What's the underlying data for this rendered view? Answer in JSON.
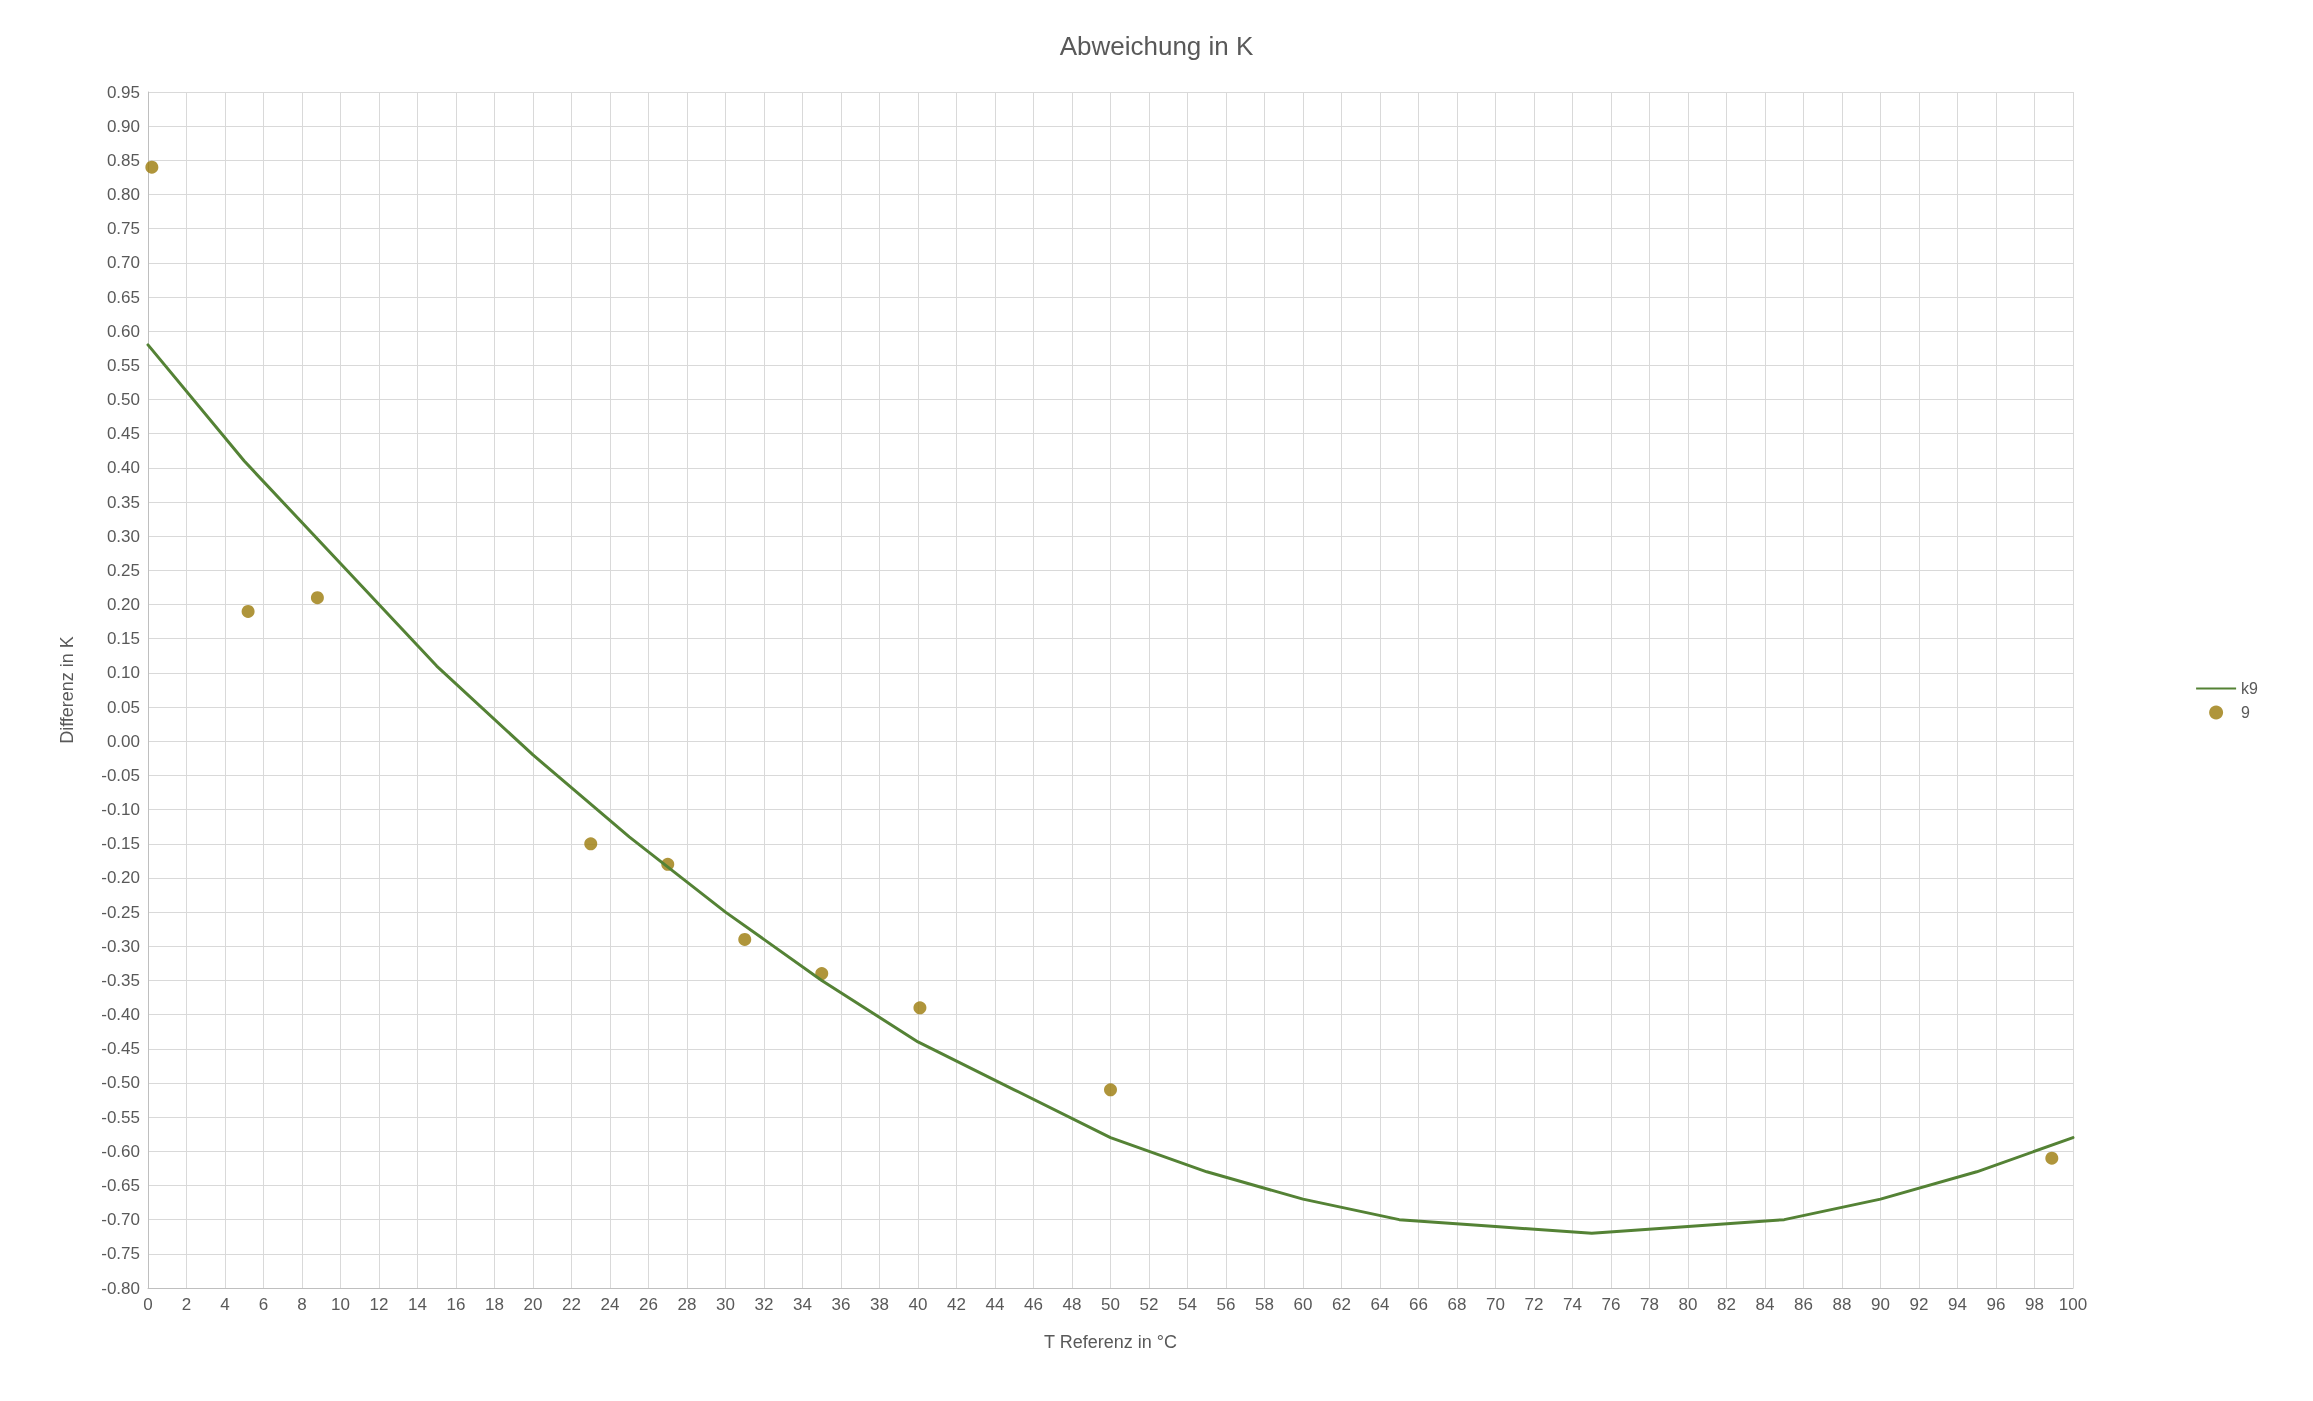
{
  "chart_data": {
    "type": "scatter",
    "title": "Abweichung in K",
    "xlabel": "T Referenz in °C",
    "ylabel": "Differenz in K",
    "xlim": [
      0,
      100
    ],
    "xticks": [
      0,
      2,
      4,
      6,
      8,
      10,
      12,
      14,
      16,
      18,
      20,
      22,
      24,
      26,
      28,
      30,
      32,
      34,
      36,
      38,
      40,
      42,
      44,
      46,
      48,
      50,
      52,
      54,
      56,
      58,
      60,
      62,
      64,
      66,
      68,
      70,
      72,
      74,
      76,
      78,
      80,
      82,
      84,
      86,
      88,
      90,
      92,
      94,
      96,
      98,
      100
    ],
    "ylim": [
      -0.8,
      0.95
    ],
    "yticks": [
      {
        "value": -0.8,
        "label": "-0.80"
      },
      {
        "value": -0.75,
        "label": "-0.75"
      },
      {
        "value": -0.7,
        "label": "-0.70"
      },
      {
        "value": -0.65,
        "label": "-0.65"
      },
      {
        "value": -0.6,
        "label": "-0.60"
      },
      {
        "value": -0.55,
        "label": "-0.55"
      },
      {
        "value": -0.5,
        "label": "-0.50"
      },
      {
        "value": -0.45,
        "label": "-0.45"
      },
      {
        "value": -0.4,
        "label": "-0.40"
      },
      {
        "value": -0.35,
        "label": "-0.35"
      },
      {
        "value": -0.3,
        "label": "-0.30"
      },
      {
        "value": -0.25,
        "label": "-0.25"
      },
      {
        "value": -0.2,
        "label": "-0.20"
      },
      {
        "value": -0.15,
        "label": "-0.15"
      },
      {
        "value": -0.1,
        "label": "-0.10"
      },
      {
        "value": -0.05,
        "label": "-0.05"
      },
      {
        "value": 0,
        "label": "0.00"
      },
      {
        "value": 0.05,
        "label": "0.05"
      },
      {
        "value": 0.1,
        "label": "0.10"
      },
      {
        "value": 0.15,
        "label": "0.15"
      },
      {
        "value": 0.2,
        "label": "0.20"
      },
      {
        "value": 0.25,
        "label": "0.25"
      },
      {
        "value": 0.3,
        "label": "0.30"
      },
      {
        "value": 0.35,
        "label": "0.35"
      },
      {
        "value": 0.4,
        "label": "0.40"
      },
      {
        "value": 0.45,
        "label": "0.45"
      },
      {
        "value": 0.5,
        "label": "0.50"
      },
      {
        "value": 0.55,
        "label": "0.55"
      },
      {
        "value": 0.6,
        "label": "0.60"
      },
      {
        "value": 0.65,
        "label": "0.65"
      },
      {
        "value": 0.7,
        "label": "0.70"
      },
      {
        "value": 0.75,
        "label": "0.75"
      },
      {
        "value": 0.8,
        "label": "0.80"
      },
      {
        "value": 0.85,
        "label": "0.85"
      },
      {
        "value": 0.9,
        "label": "0.90"
      },
      {
        "value": 0.95,
        "label": "0.95"
      }
    ],
    "grid": true,
    "legend": "right",
    "series": [
      {
        "name": "k9",
        "type": "line",
        "color": "#548235",
        "marker": "none",
        "line_style": "solid",
        "x": [
          0,
          5,
          10,
          15,
          20,
          25,
          30,
          35,
          40,
          45,
          50,
          55,
          60,
          65,
          70,
          75,
          80,
          85,
          90,
          95,
          100
        ],
        "values": [
          0.58,
          0.41,
          0.26,
          0.11,
          -0.02,
          -0.14,
          -0.25,
          -0.35,
          -0.44,
          -0.51,
          -0.58,
          -0.63,
          -0.67,
          -0.7,
          -0.71,
          -0.72,
          -0.71,
          -0.7,
          -0.67,
          -0.63,
          -0.58
        ]
      },
      {
        "name": "9",
        "color": "#9b7b0a",
        "marker": "circle",
        "x": [
          0.2,
          5.2,
          8.8,
          23,
          27,
          31,
          35,
          40.1,
          50,
          98.9
        ],
        "values": [
          0.84,
          0.19,
          0.21,
          -0.15,
          -0.18,
          -0.29,
          -0.34,
          -0.39,
          -0.51,
          -0.61
        ]
      }
    ]
  }
}
